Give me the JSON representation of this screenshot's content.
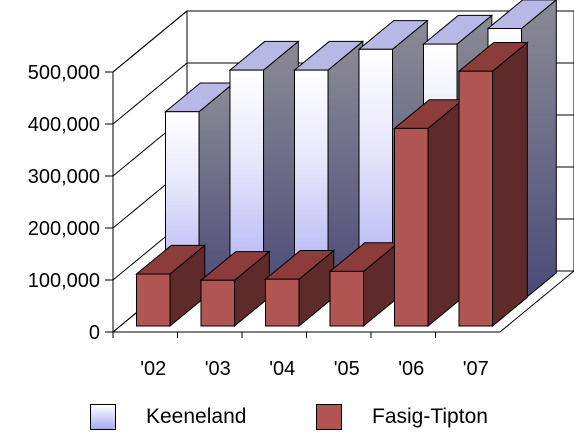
{
  "chart_data": {
    "type": "bar",
    "style": "3d-clustered",
    "categories": [
      "'02",
      "'03",
      "'04",
      "'05",
      "'06",
      "'07"
    ],
    "series": [
      {
        "name": "Keeneland",
        "values": [
          365000,
          445000,
          445000,
          485000,
          495000,
          525000
        ],
        "color": "#b8b8f8",
        "placement": "back"
      },
      {
        "name": "Fasig-Tipton",
        "values": [
          100000,
          88000,
          90000,
          105000,
          380000,
          490000
        ],
        "color": "#b05552",
        "placement": "front"
      }
    ],
    "y_ticks": [
      "0",
      "100,000",
      "200,000",
      "300,000",
      "400,000",
      "500,000"
    ],
    "ylim": [
      0,
      500000
    ],
    "grid": true,
    "legend_position": "bottom"
  }
}
